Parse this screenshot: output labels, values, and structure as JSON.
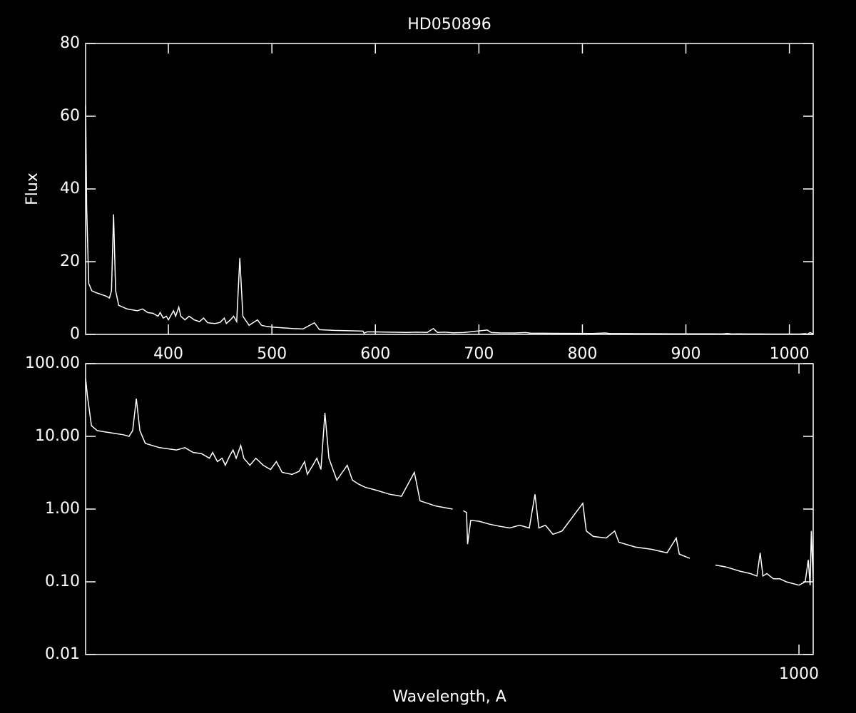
{
  "chart_data": [
    {
      "type": "line",
      "title": "HD050896",
      "ylabel": "Flux",
      "color": "#ffffff",
      "xscale": "linear",
      "yscale": "linear",
      "xlim": [
        320,
        1023
      ],
      "ylim": [
        0,
        80
      ],
      "xticks": [
        400,
        500,
        600,
        700,
        800,
        900,
        1000
      ],
      "yticks": [
        0,
        20,
        40,
        60,
        80
      ],
      "x": [
        320,
        321,
        323,
        326,
        330,
        335,
        340,
        343,
        345,
        347,
        349,
        352,
        360,
        370,
        375,
        380,
        385,
        390,
        392,
        395,
        398,
        400,
        403,
        405,
        407,
        410,
        412,
        416,
        420,
        425,
        430,
        434,
        438,
        445,
        450,
        454,
        456,
        460,
        463,
        466,
        469,
        472,
        478,
        486,
        490,
        495,
        500,
        510,
        520,
        530,
        541,
        546,
        560,
        575,
        585,
        588,
        589,
        592,
        600,
        610,
        620,
        630,
        640,
        650,
        656,
        660,
        667,
        675,
        685,
        708,
        712,
        720,
        735,
        745,
        750,
        770,
        790,
        810,
        822,
        826,
        840,
        875,
        890,
        910,
        925,
        935,
        940,
        944,
        950,
        960,
        970,
        980,
        1000,
        1010,
        1015,
        1018,
        1020,
        1023
      ],
      "values": [
        63,
        35,
        14,
        12,
        11.5,
        11,
        10.5,
        10,
        12,
        33,
        12,
        8,
        7,
        6.5,
        7,
        6,
        5.8,
        5,
        6,
        4.5,
        5,
        4,
        5.5,
        6.5,
        5,
        7.5,
        5,
        4,
        5,
        4,
        3.5,
        4.5,
        3.2,
        3,
        3.3,
        4.5,
        3,
        4,
        5,
        3.5,
        21,
        5,
        2.5,
        4,
        2.5,
        2.2,
        2,
        1.8,
        1.6,
        1.5,
        3.2,
        1.3,
        1.1,
        1.0,
        0.95,
        0.9,
        0.33,
        0.7,
        0.68,
        0.62,
        0.58,
        0.55,
        0.6,
        0.55,
        1.6,
        0.55,
        0.6,
        0.45,
        0.5,
        1.2,
        0.5,
        0.42,
        0.4,
        0.5,
        0.35,
        0.3,
        0.28,
        0.25,
        0.4,
        0.24,
        0.21,
        0.17,
        0.16,
        0.14,
        0.13,
        0.12,
        0.25,
        0.12,
        0.13,
        0.11,
        0.11,
        0.1,
        0.09,
        0.1,
        0.2,
        0.09,
        0.5,
        0.1
      ]
    },
    {
      "type": "line",
      "xlabel": "Wavelength, A",
      "color": "#ffffff",
      "xscale": "log",
      "yscale": "log",
      "xlim": [
        320,
        1023
      ],
      "ylim": [
        0.01,
        100
      ],
      "xticks": [
        1000
      ],
      "yticks": [
        {
          "value": 0.01,
          "label": "0.01"
        },
        {
          "value": 0.1,
          "label": "0.10"
        },
        {
          "value": 1,
          "label": "1.00"
        },
        {
          "value": 10,
          "label": "10.00"
        },
        {
          "value": 100,
          "label": "100.00"
        }
      ],
      "x": [
        320,
        321,
        323,
        326,
        330,
        335,
        340,
        343,
        345,
        347,
        349,
        352,
        360,
        370,
        375,
        380,
        385,
        390,
        392,
        395,
        398,
        400,
        403,
        405,
        407,
        410,
        412,
        416,
        420,
        425,
        430,
        434,
        438,
        445,
        450,
        454,
        456,
        460,
        463,
        466,
        469,
        472,
        478,
        486,
        490,
        495,
        500,
        510,
        520,
        530,
        541,
        546,
        560,
        575,
        580,
        585,
        588,
        589,
        592,
        600,
        610,
        620,
        630,
        640,
        650,
        656,
        660,
        667,
        675,
        685,
        708,
        712,
        720,
        735,
        745,
        750,
        770,
        790,
        810,
        822,
        826,
        840,
        850,
        875,
        890,
        910,
        925,
        935,
        940,
        944,
        950,
        960,
        970,
        980,
        1000,
        1010,
        1015,
        1018,
        1020,
        1023
      ],
      "values": [
        63,
        35,
        14,
        12,
        11.5,
        11,
        10.5,
        10,
        12,
        33,
        12,
        8,
        7,
        6.5,
        7,
        6,
        5.8,
        5,
        6,
        4.5,
        5,
        4,
        5.5,
        6.5,
        5,
        7.5,
        5,
        4,
        5,
        4,
        3.5,
        4.5,
        3.2,
        3,
        3.3,
        4.5,
        3,
        4,
        5,
        3.5,
        21,
        5,
        2.5,
        4,
        2.5,
        2.2,
        2,
        1.8,
        1.6,
        1.5,
        3.2,
        1.3,
        1.1,
        1.0,
        null,
        0.95,
        0.9,
        0.33,
        0.7,
        0.68,
        0.62,
        0.58,
        0.55,
        0.6,
        0.55,
        1.6,
        0.55,
        0.6,
        0.45,
        0.5,
        1.2,
        0.5,
        0.42,
        0.4,
        0.5,
        0.35,
        0.3,
        0.28,
        0.25,
        0.4,
        0.24,
        0.21,
        null,
        0.17,
        0.16,
        0.14,
        0.13,
        0.12,
        0.25,
        0.12,
        0.13,
        0.11,
        0.11,
        0.1,
        0.09,
        0.1,
        0.2,
        0.09,
        0.5,
        0.1
      ]
    }
  ]
}
